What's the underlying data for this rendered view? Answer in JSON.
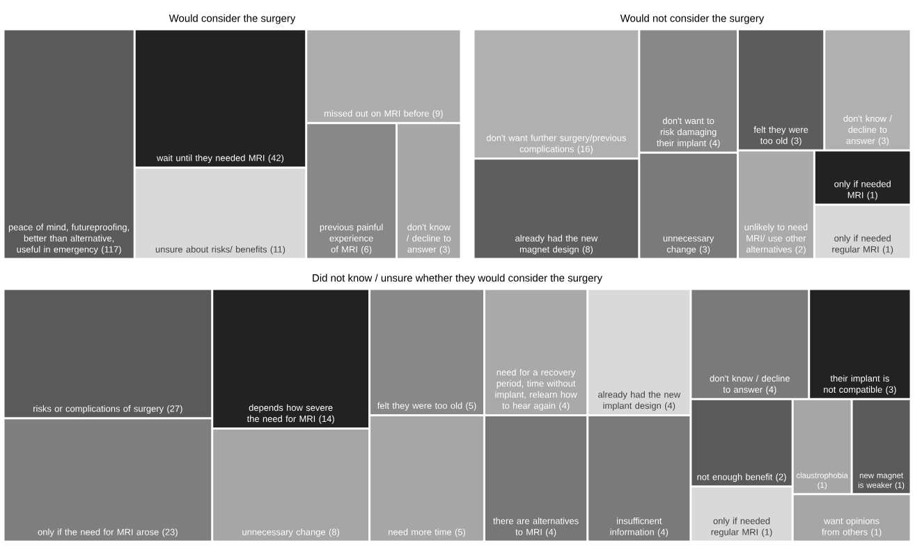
{
  "chart_data": [
    {
      "type": "other",
      "title": "Would consider the surgery",
      "categories": [
        "peace of mind, futureproofing, better than alternative, useful in emergency",
        "wait until they needed MRI",
        "unsure about risks/ benefits",
        "missed out on MRI before",
        "previous painful experience of MRI",
        "don't know / decline to answer"
      ],
      "values": [
        117,
        42,
        11,
        9,
        6,
        3
      ],
      "value_labels": [
        "(117)",
        "(42)",
        "(11)",
        "(9)",
        "(6)",
        "(3)"
      ],
      "colors": [
        "#5a5a5a",
        "#222222",
        "#d9d9d9",
        "#adadad",
        "#888888",
        "#a6a6a6"
      ]
    },
    {
      "type": "other",
      "title": "Would not consider the surgery",
      "categories": [
        "don't want further surgery/previous complications",
        "already had the new magnet design",
        "don't want to risk damaging their implant",
        "unnecessary change",
        "felt they were too old",
        "don't know / decline to answer",
        "unlikely to need MRI/ use other alternatives",
        "only if needed MRI",
        "only if needed regular MRI"
      ],
      "values": [
        16,
        8,
        4,
        3,
        3,
        3,
        2,
        1,
        1
      ],
      "value_labels": [
        "(16)",
        "(8)",
        "(4)",
        "(3)",
        "(3)",
        "(3)",
        "(2)",
        "(1)",
        "(1)"
      ],
      "colors": [
        "#b0b0b0",
        "#5e5e5e",
        "#888888",
        "#7a7a7a",
        "#5c5c5c",
        "#b0b0b0",
        "#aaaaaa",
        "#222222",
        "#d9d9d9"
      ]
    },
    {
      "type": "other",
      "title": "Did not know / unsure whether they would consider the surgery",
      "categories": [
        "risks or complications of surgery",
        "only if the need for MRI arose",
        "depends how severe the need for MRI",
        "unnecessary change",
        "felt they were too old",
        "need more time",
        "need for a recovery period, time without implant, relearn how to hear again",
        "there are alternatives to MRI",
        "already had the new implant design",
        "insufficnent information",
        "don't know / decline to answer",
        "their implant is not compatible",
        "not enough benefit",
        "only if needed regular MRI",
        "claustrophobia",
        "new magnet is weaker",
        "want opinions from others"
      ],
      "values": [
        27,
        23,
        14,
        8,
        5,
        5,
        4,
        4,
        4,
        4,
        4,
        3,
        2,
        1,
        1,
        1,
        1
      ],
      "value_labels": [
        "(27)",
        "(23)",
        "(14)",
        "(8)",
        "(5)",
        "(5)",
        "(4)",
        "(4)",
        "(4)",
        "(4)",
        "(4)",
        "(3)",
        "(2)",
        "(1)",
        "(1)",
        "(1)",
        "(1)"
      ],
      "colors": [
        "#5a5a5a",
        "#7f7f7f",
        "#222222",
        "#a6a6a6",
        "#888888",
        "#a6a6a6",
        "#a9a9a9",
        "#777777",
        "#d9d9d9",
        "#7a7a7a",
        "#7a7a7a",
        "#222222",
        "#5a5a5a",
        "#d9d9d9",
        "#a6a6a6",
        "#5a5a5a",
        "#a6a6a6"
      ]
    }
  ]
}
